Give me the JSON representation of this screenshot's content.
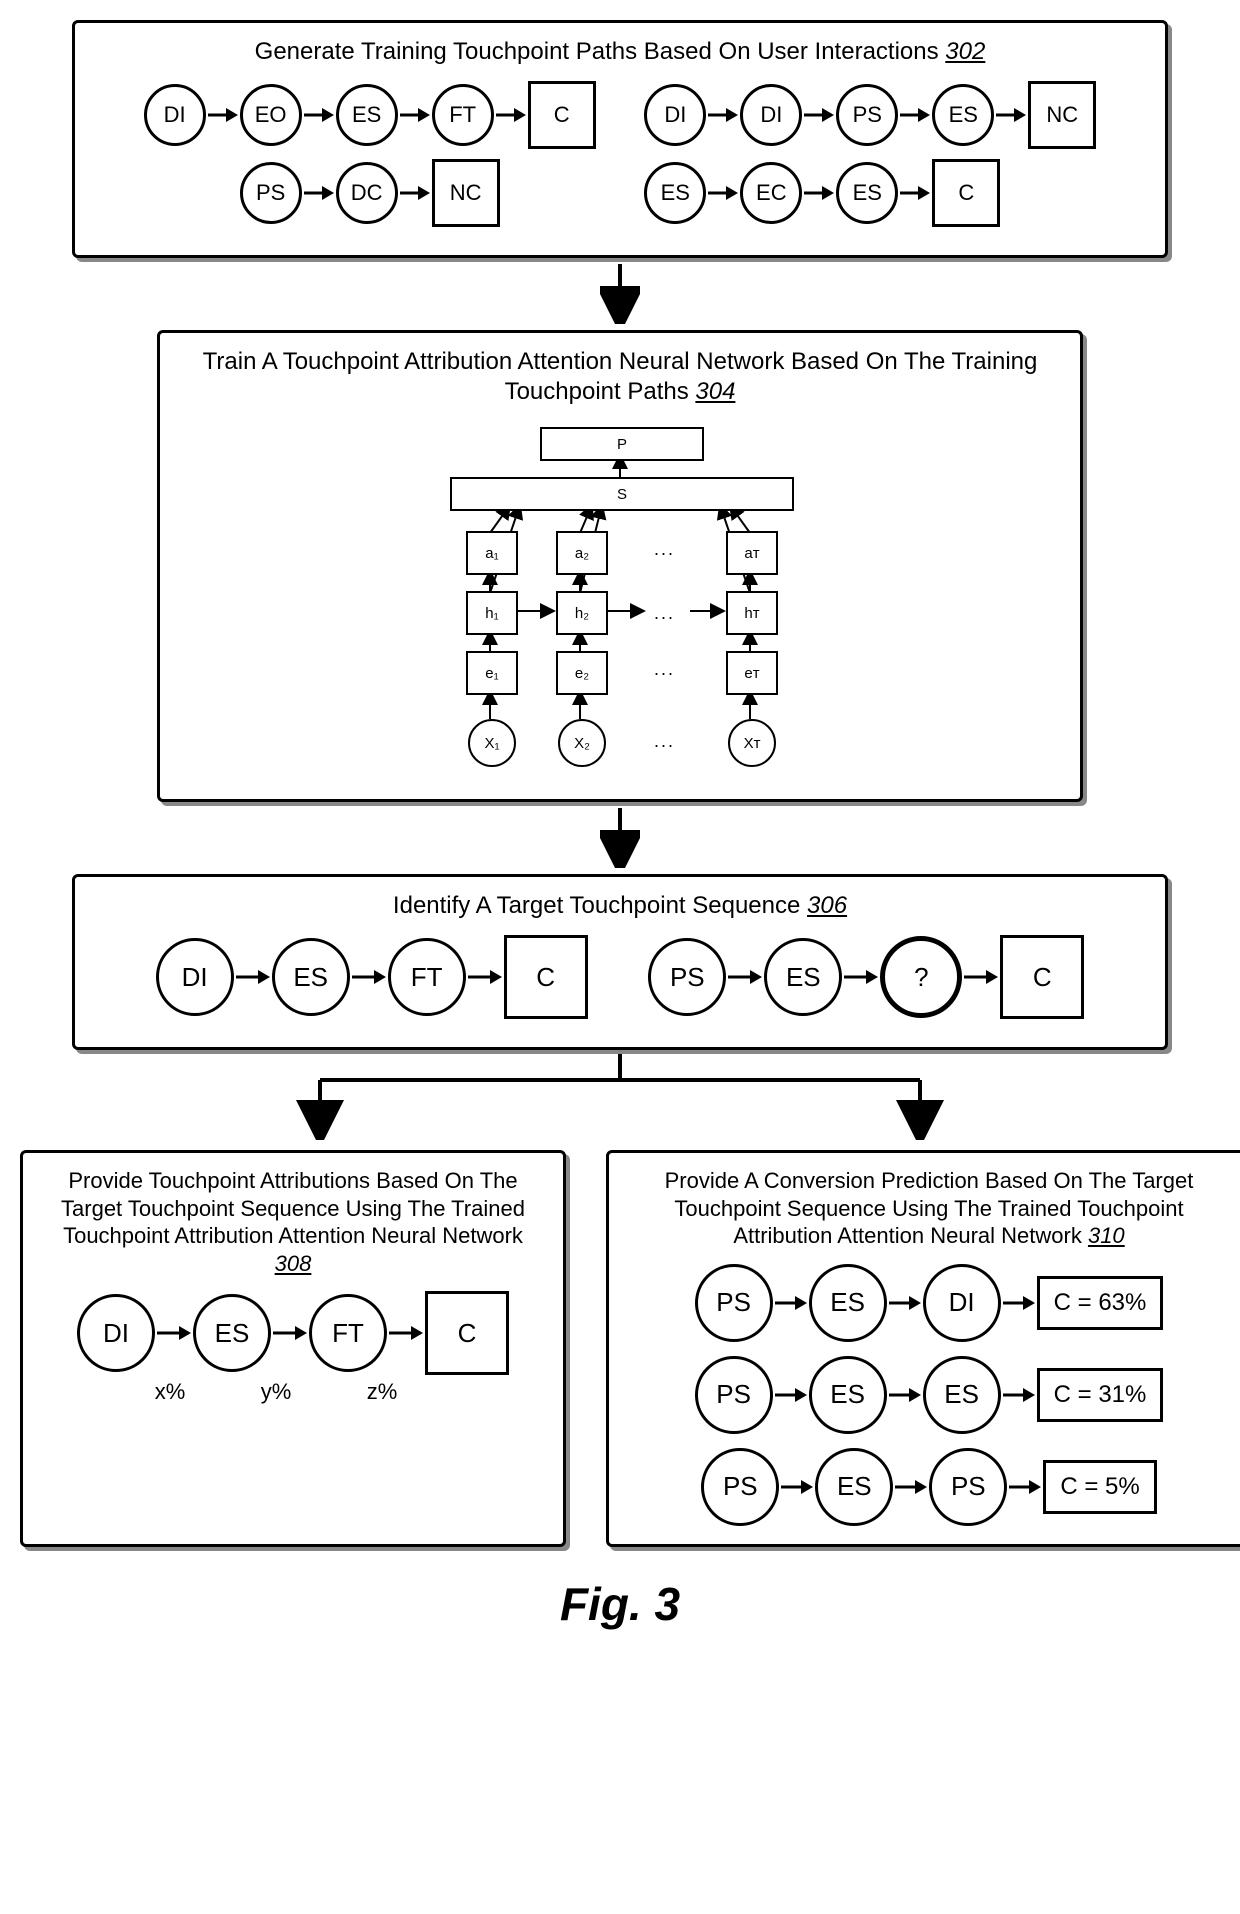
{
  "figure_caption": "Fig. 3",
  "colors": {
    "stroke": "#000000",
    "shadow": "#888888",
    "bg": "#ffffff"
  },
  "fonts": {
    "title_size": 24,
    "node_size": 22,
    "caption_size": 46
  },
  "box302": {
    "title": "Generate Training Touchpoint Paths Based On User Interactions",
    "ref": "302",
    "paths": [
      {
        "nodes": [
          "DI",
          "EO",
          "ES",
          "FT"
        ],
        "end": "C",
        "end_shape": "square"
      },
      {
        "nodes": [
          "DI",
          "DI",
          "PS",
          "ES"
        ],
        "end": "NC",
        "end_shape": "square"
      },
      {
        "nodes": [
          "PS",
          "DC"
        ],
        "end": "NC",
        "end_shape": "square"
      },
      {
        "nodes": [
          "ES",
          "EC",
          "ES"
        ],
        "end": "C",
        "end_shape": "square"
      }
    ]
  },
  "box304": {
    "title": "Train A Touchpoint Attribution Attention Neural Network Based On The Training Touchpoint Paths",
    "ref": "304",
    "nn": {
      "top": "P",
      "s": "S",
      "cols": [
        {
          "a": "a₁",
          "h": "h₁",
          "e": "e₁",
          "x": "X₁"
        },
        {
          "a": "a₂",
          "h": "h₂",
          "e": "e₂",
          "x": "X₂"
        },
        {
          "dots": "..."
        },
        {
          "a": "aᴛ",
          "h": "hᴛ",
          "e": "eᴛ",
          "x": "Xᴛ"
        }
      ]
    }
  },
  "box306": {
    "title": "Identify A Target Touchpoint Sequence",
    "ref": "306",
    "seqs": [
      {
        "nodes": [
          "DI",
          "ES",
          "FT"
        ],
        "end": "C",
        "end_shape": "square"
      },
      {
        "nodes": [
          "PS",
          "ES",
          "?"
        ],
        "end": "C",
        "end_shape": "square",
        "thick_index": 2
      }
    ]
  },
  "box308": {
    "title": "Provide Touchpoint Attributions Based On The Target Touchpoint Sequence Using The Trained Touchpoint Attribution Attention Neural Network",
    "ref": "308",
    "seq": {
      "nodes": [
        "DI",
        "ES",
        "FT"
      ],
      "end": "C"
    },
    "sublabels": [
      "x%",
      "y%",
      "z%"
    ]
  },
  "box310": {
    "title": "Provide A Conversion Prediction Based On The Target Touchpoint Sequence Using The Trained Touchpoint Attribution Attention Neural Network",
    "ref": "310",
    "preds": [
      {
        "nodes": [
          "PS",
          "ES",
          "DI"
        ],
        "result": "C = 63%"
      },
      {
        "nodes": [
          "PS",
          "ES",
          "ES"
        ],
        "result": "C = 31%"
      },
      {
        "nodes": [
          "PS",
          "ES",
          "PS"
        ],
        "result": "C = 5%"
      }
    ]
  }
}
